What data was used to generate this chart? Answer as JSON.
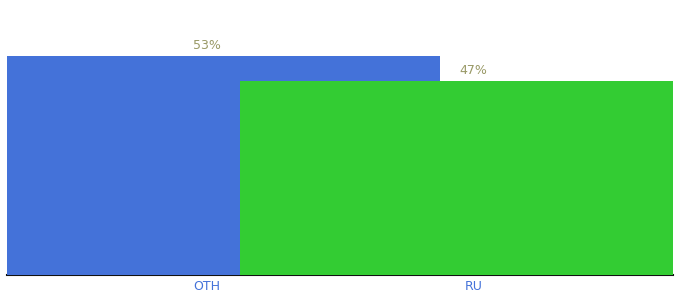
{
  "categories": [
    "OTH",
    "RU"
  ],
  "values": [
    53,
    47
  ],
  "bar_colors": [
    "#4472d9",
    "#33cc33"
  ],
  "label_texts": [
    "53%",
    "47%"
  ],
  "ylim": [
    0,
    65
  ],
  "bar_width": 0.7,
  "x_positions": [
    0.3,
    0.7
  ],
  "label_color": "#999966",
  "label_fontsize": 9,
  "tick_fontsize": 9,
  "tick_color": "#4472d9",
  "background_color": "#ffffff",
  "axis_line_color": "#111111"
}
